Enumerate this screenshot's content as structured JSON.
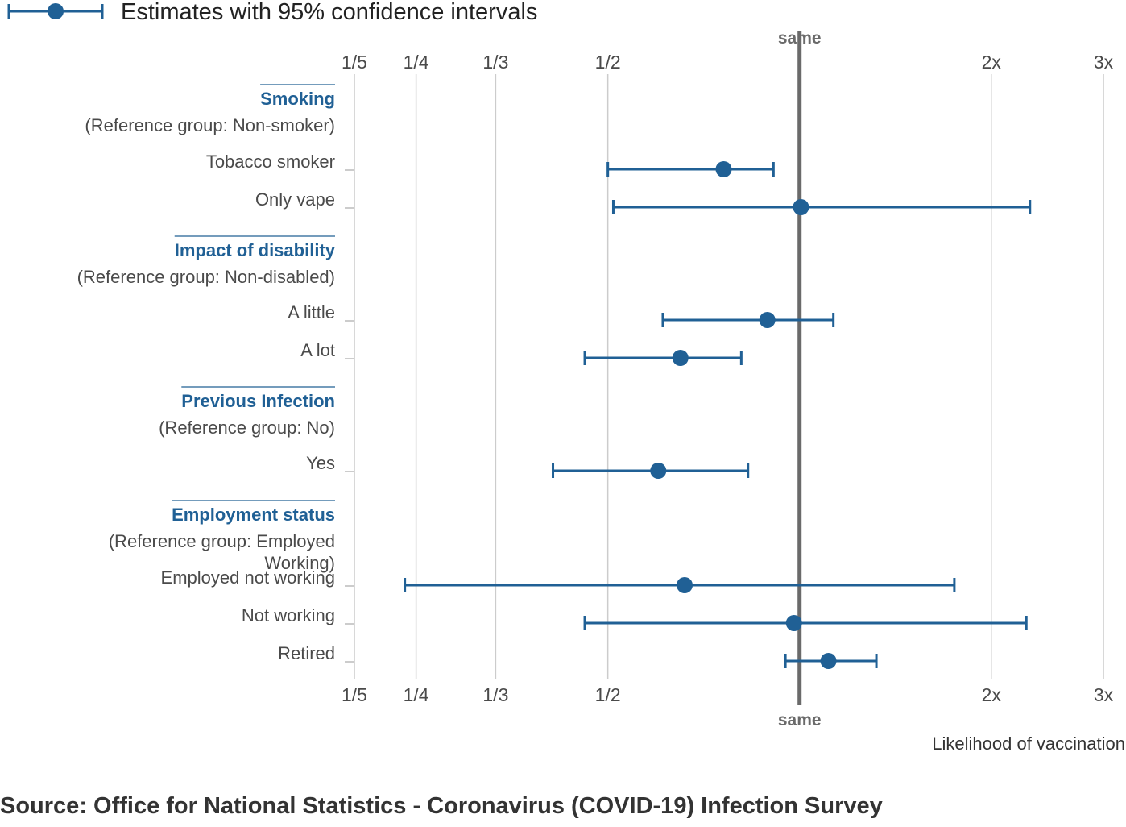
{
  "chart_data": {
    "type": "scatter",
    "subtype": "forest-plot",
    "legend": {
      "label": "Estimates with 95% confidence intervals",
      "placement": "top-left"
    },
    "xaxis": {
      "scale": "log",
      "ticks": [
        {
          "value": 0.2,
          "label": "1/5"
        },
        {
          "value": 0.25,
          "label": "1/4"
        },
        {
          "value": 0.3333,
          "label": "1/3"
        },
        {
          "value": 0.5,
          "label": "1/2"
        },
        {
          "value": 1,
          "label": "same"
        },
        {
          "value": 2,
          "label": "2x"
        },
        {
          "value": 3,
          "label": "3x"
        }
      ],
      "xlim": [
        0.2,
        3
      ],
      "xlabel": "Likelihood of vaccination",
      "grid": true
    },
    "groups": [
      {
        "title": "Smoking",
        "reference": "(Reference group: Non-smoker)",
        "items": [
          {
            "label": "Tobacco smoker",
            "estimate": 0.76,
            "lower": 0.5,
            "upper": 0.91
          },
          {
            "label": "Only vape",
            "estimate": 1.005,
            "lower": 0.51,
            "upper": 2.3
          }
        ]
      },
      {
        "title": "Impact of disability",
        "reference": "(Reference group: Non-disabled)",
        "items": [
          {
            "label": "A little",
            "estimate": 0.89,
            "lower": 0.61,
            "upper": 1.13
          },
          {
            "label": "A lot",
            "estimate": 0.65,
            "lower": 0.46,
            "upper": 0.81
          }
        ]
      },
      {
        "title": "Previous Infection",
        "reference": "(Reference group: No)",
        "items": [
          {
            "label": "Yes",
            "estimate": 0.6,
            "lower": 0.41,
            "upper": 0.83
          }
        ]
      },
      {
        "title": "Employment status",
        "reference": "(Reference group: Employed Working)",
        "items": [
          {
            "label": "Employed not working",
            "estimate": 0.66,
            "lower": 0.24,
            "upper": 1.75
          },
          {
            "label": "Not working",
            "estimate": 0.98,
            "lower": 0.46,
            "upper": 2.27
          },
          {
            "label": "Retired",
            "estimate": 1.11,
            "lower": 0.95,
            "upper": 1.32
          }
        ]
      }
    ]
  },
  "colors": {
    "series": "#206095",
    "reference_line": "#6a6a6a",
    "grid": "#cccccc",
    "group_title": "#206095"
  },
  "source": "Source: Office for National Statistics - Coronavirus (COVID-19) Infection Survey"
}
